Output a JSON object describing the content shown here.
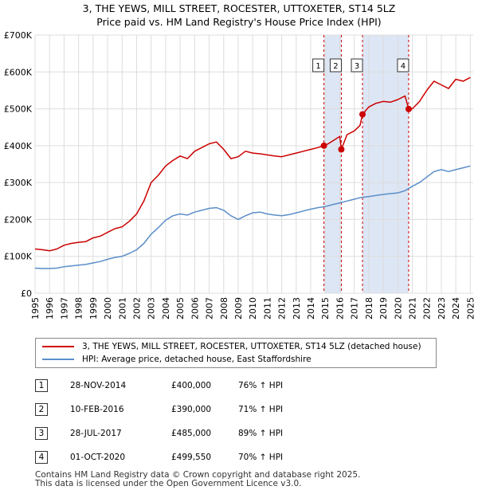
{
  "title": {
    "line1": "3, THE YEWS, MILL STREET, ROCESTER, UTTOXETER, ST14 5LZ",
    "line2": "Price paid vs. HM Land Registry's House Price Index (HPI)"
  },
  "legend": {
    "property_label": "3, THE YEWS, MILL STREET, ROCESTER, UTTOXETER, ST14 5LZ (detached house)",
    "hpi_label": "HPI: Average price, detached house, East Staffordshire"
  },
  "sales": [
    {
      "num": "1",
      "date": "28-NOV-2014",
      "price": "£400,000",
      "hpi": "76% ↑ HPI"
    },
    {
      "num": "2",
      "date": "10-FEB-2016",
      "price": "£390,000",
      "hpi": "71% ↑ HPI"
    },
    {
      "num": "3",
      "date": "28-JUL-2017",
      "price": "£485,000",
      "hpi": "89% ↑ HPI"
    },
    {
      "num": "4",
      "date": "01-OCT-2020",
      "price": "£499,550",
      "hpi": "70% ↑ HPI"
    }
  ],
  "footer": {
    "line1": "Contains HM Land Registry data © Crown copyright and database right 2025.",
    "line2": "This data is licensed under the Open Government Licence v3.0."
  },
  "colors": {
    "property": "#cc0000",
    "hpi": "#5b8ec9",
    "shade": "#dde6f4",
    "grid": "#dddddd"
  },
  "chart_data": {
    "type": "line",
    "xlim": [
      1995,
      2025.2
    ],
    "ylim": [
      0,
      700000
    ],
    "x_ticks": [
      1995,
      1996,
      1997,
      1998,
      1999,
      2000,
      2001,
      2002,
      2003,
      2004,
      2005,
      2006,
      2007,
      2008,
      2009,
      2010,
      2011,
      2012,
      2013,
      2014,
      2015,
      2016,
      2017,
      2018,
      2019,
      2020,
      2021,
      2022,
      2023,
      2024,
      2025
    ],
    "x_tick_labels": [
      "1995",
      "1996",
      "1997",
      "1998",
      "1999",
      "2000",
      "2001",
      "2002",
      "2003",
      "2004",
      "2005",
      "2006",
      "2007",
      "2008",
      "2009",
      "2010",
      "2011",
      "2012",
      "2013",
      "2014",
      "2015",
      "2016",
      "2017",
      "2018",
      "2019",
      "2020",
      "2021",
      "2022",
      "2023",
      "2024",
      "2025"
    ],
    "y_ticks": [
      0,
      100000,
      200000,
      300000,
      400000,
      500000,
      600000,
      700000
    ],
    "y_tick_labels": [
      "£0",
      "£100K",
      "£200K",
      "£300K",
      "£400K",
      "£500K",
      "£600K",
      "£700K"
    ],
    "shaded_spans": [
      [
        2014.91,
        2016.11
      ],
      [
        2017.57,
        2020.75
      ]
    ],
    "sale_markers": [
      {
        "label": "1",
        "x": 2014.91,
        "y": 400000
      },
      {
        "label": "2",
        "x": 2016.11,
        "y": 390000
      },
      {
        "label": "3",
        "x": 2017.57,
        "y": 485000
      },
      {
        "label": "4",
        "x": 2020.75,
        "y": 499550
      }
    ],
    "series": [
      {
        "name": "3, THE YEWS, MILL STREET, ROCESTER, UTTOXETER, ST14 5LZ (detached house)",
        "x": [
          1995,
          1995.5,
          1996,
          1996.5,
          1997,
          1997.5,
          1998,
          1998.5,
          1999,
          1999.5,
          2000,
          2000.5,
          2001,
          2001.5,
          2002,
          2002.5,
          2003,
          2003.5,
          2004,
          2004.5,
          2005,
          2005.5,
          2006,
          2006.5,
          2007,
          2007.5,
          2008,
          2008.5,
          2009,
          2009.5,
          2010,
          2010.5,
          2011,
          2011.5,
          2012,
          2012.5,
          2013,
          2013.5,
          2014,
          2014.5,
          2014.91,
          2015.2,
          2015.6,
          2016.0,
          2016.11,
          2016.5,
          2017.0,
          2017.4,
          2017.57,
          2018,
          2018.5,
          2019,
          2019.5,
          2020,
          2020.5,
          2020.75,
          2021,
          2021.5,
          2022,
          2022.5,
          2023,
          2023.5,
          2024,
          2024.5,
          2025
        ],
        "values": [
          120000,
          118000,
          115000,
          120000,
          130000,
          135000,
          138000,
          140000,
          150000,
          155000,
          165000,
          175000,
          180000,
          195000,
          215000,
          250000,
          300000,
          320000,
          345000,
          360000,
          372000,
          365000,
          385000,
          395000,
          405000,
          410000,
          390000,
          365000,
          370000,
          385000,
          380000,
          378000,
          375000,
          372000,
          370000,
          375000,
          380000,
          385000,
          390000,
          395000,
          400000,
          405000,
          415000,
          425000,
          390000,
          430000,
          440000,
          455000,
          485000,
          505000,
          515000,
          520000,
          518000,
          525000,
          535000,
          499550,
          500000,
          520000,
          550000,
          575000,
          565000,
          555000,
          580000,
          575000,
          585000
        ]
      },
      {
        "name": "HPI: Average price, detached house, East Staffordshire",
        "x": [
          1995,
          1995.5,
          1996,
          1996.5,
          1997,
          1997.5,
          1998,
          1998.5,
          1999,
          1999.5,
          2000,
          2000.5,
          2001,
          2001.5,
          2002,
          2002.5,
          2003,
          2003.5,
          2004,
          2004.5,
          2005,
          2005.5,
          2006,
          2006.5,
          2007,
          2007.5,
          2008,
          2008.5,
          2009,
          2009.5,
          2010,
          2010.5,
          2011,
          2011.5,
          2012,
          2012.5,
          2013,
          2013.5,
          2014,
          2014.5,
          2015,
          2015.5,
          2016,
          2016.5,
          2017,
          2017.5,
          2018,
          2018.5,
          2019,
          2019.5,
          2020,
          2020.5,
          2021,
          2021.5,
          2022,
          2022.5,
          2023,
          2023.5,
          2024,
          2024.5,
          2025
        ],
        "values": [
          68000,
          67000,
          67000,
          68000,
          72000,
          74000,
          76000,
          78000,
          82000,
          86000,
          92000,
          97000,
          100000,
          108000,
          118000,
          135000,
          160000,
          178000,
          198000,
          210000,
          215000,
          212000,
          220000,
          225000,
          230000,
          232000,
          225000,
          210000,
          200000,
          210000,
          218000,
          220000,
          215000,
          212000,
          210000,
          213000,
          218000,
          223000,
          228000,
          232000,
          235000,
          240000,
          245000,
          250000,
          255000,
          260000,
          262000,
          265000,
          268000,
          270000,
          272000,
          278000,
          290000,
          300000,
          315000,
          330000,
          335000,
          330000,
          335000,
          340000,
          345000
        ]
      }
    ]
  }
}
